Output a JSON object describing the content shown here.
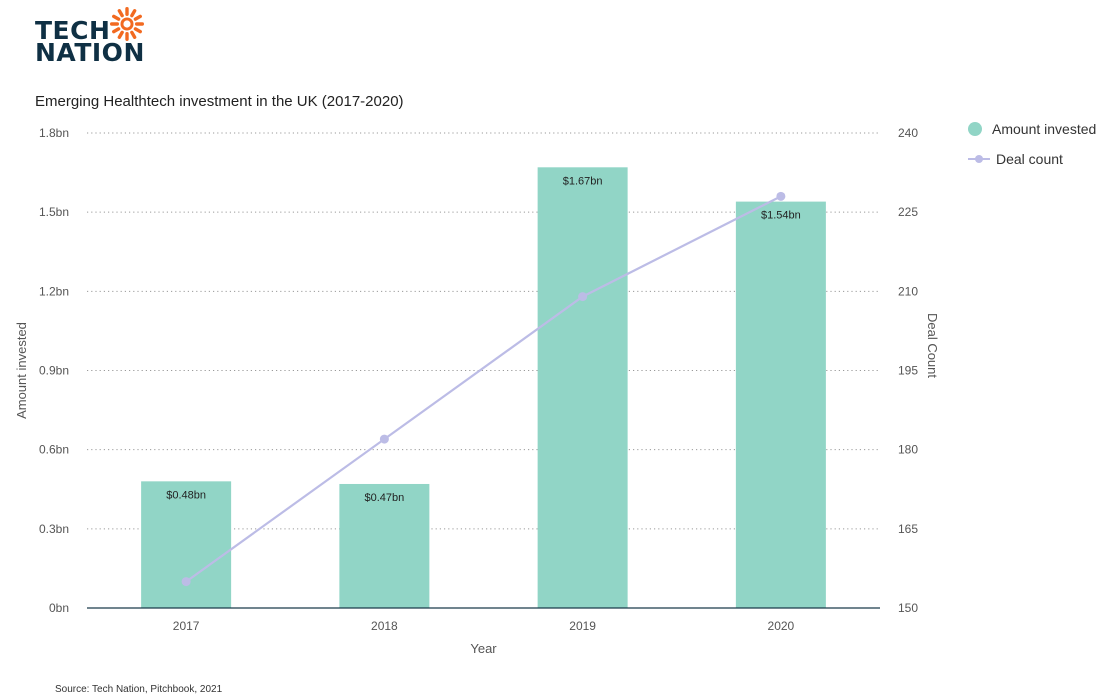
{
  "logo": {
    "line1": "TECH",
    "line2": "NATION",
    "colors": {
      "text": "#0f3044",
      "sun": "#f26a21"
    }
  },
  "chart_data": {
    "type": "bar",
    "title": "Emerging Healthtech investment in the UK (2017-2020)",
    "xlabel": "Year",
    "ylabel": "Amount invested",
    "y2label": "Deal Count",
    "categories": [
      "2017",
      "2018",
      "2019",
      "2020"
    ],
    "series": [
      {
        "name": "Amount invested",
        "type": "bar",
        "axis": "left",
        "values": [
          0.48,
          0.47,
          1.67,
          1.54
        ],
        "data_labels": [
          "$0.48bn",
          "$0.47bn",
          "$1.67bn",
          "$1.54bn"
        ],
        "color": "#91d5c6"
      },
      {
        "name": "Deal count",
        "type": "line",
        "axis": "right",
        "values": [
          155,
          182,
          209,
          228
        ],
        "color": "#bcbce6"
      }
    ],
    "ylim": [
      0,
      1.8
    ],
    "yticks": [
      0,
      0.3,
      0.6,
      0.9,
      1.2,
      1.5,
      1.8
    ],
    "ytick_labels": [
      "0bn",
      "0.3bn",
      "0.6bn",
      "0.9bn",
      "1.2bn",
      "1.5bn",
      "1.8bn"
    ],
    "y2lim": [
      150,
      240
    ],
    "y2ticks": [
      150,
      165,
      180,
      195,
      210,
      225,
      240
    ],
    "ytick2_labels": [
      "150",
      "165",
      "180",
      "195",
      "210",
      "225",
      "240"
    ],
    "grid": "horizontal dotted",
    "legend_position": "top-right"
  },
  "source": "Source: Tech Nation, Pitchbook, 2021"
}
